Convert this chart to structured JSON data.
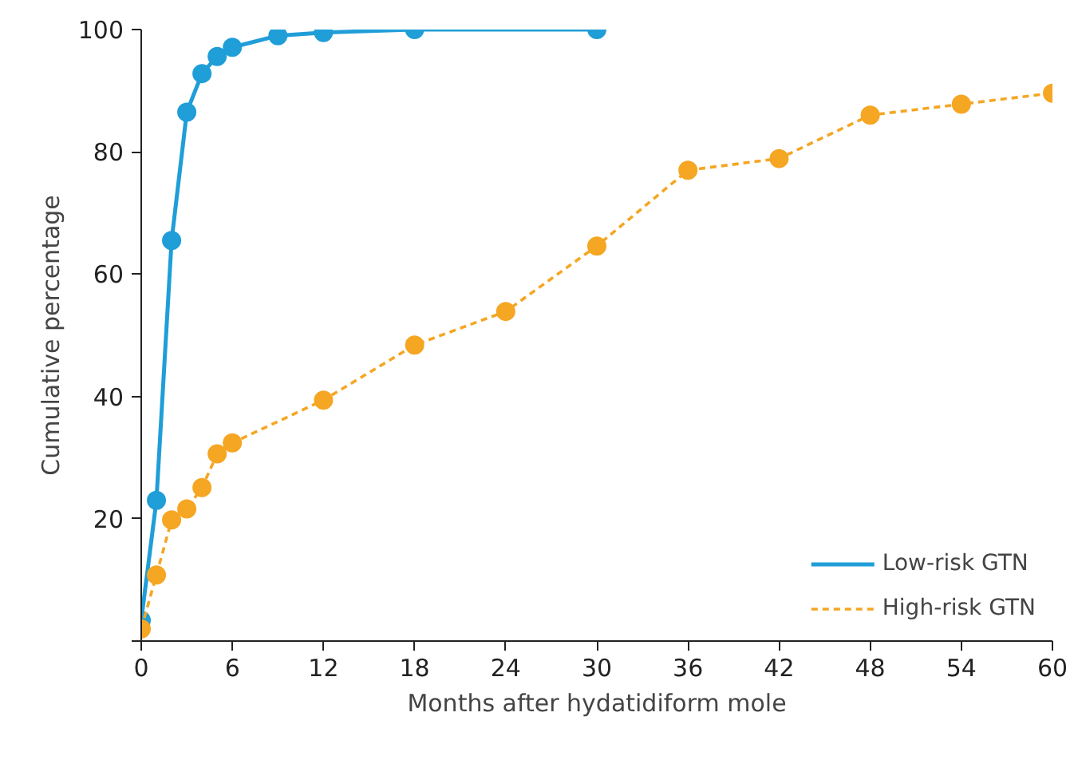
{
  "chart_data": {
    "type": "line",
    "xlabel": "Months after hydatidiform mole",
    "ylabel": "Cumulative percentage",
    "xlim": [
      0,
      60
    ],
    "xticks": [
      0,
      6,
      12,
      18,
      24,
      30,
      36,
      42,
      48,
      54,
      60
    ],
    "ylim": [
      0,
      100
    ],
    "yticks": [
      {
        "value": 0,
        "label": null
      },
      20,
      40,
      60,
      80,
      100
    ],
    "grid": false,
    "legend": "bottom right",
    "marker": "circle",
    "series": [
      {
        "name": "Low-risk GTN",
        "color": "#1f9ed8",
        "line_style": "solid",
        "x": [
          0,
          1,
          2,
          3,
          4,
          5,
          6,
          9,
          12,
          18,
          30
        ],
        "values": [
          3.4,
          23.0,
          65.5,
          86.5,
          92.8,
          95.6,
          97.1,
          99.0,
          99.5,
          100,
          100
        ]
      },
      {
        "name": "High-risk GTN",
        "color": "#f5a623",
        "line_style": "dashed",
        "x": [
          0,
          1,
          2,
          3,
          4,
          5,
          6,
          12,
          18,
          24,
          30,
          36,
          42,
          48,
          54,
          60
        ],
        "values": [
          2.0,
          10.8,
          19.8,
          21.6,
          25.1,
          30.6,
          32.4,
          39.4,
          48.4,
          53.9,
          64.6,
          77.0,
          78.9,
          86.0,
          87.8,
          89.6
        ]
      }
    ]
  }
}
